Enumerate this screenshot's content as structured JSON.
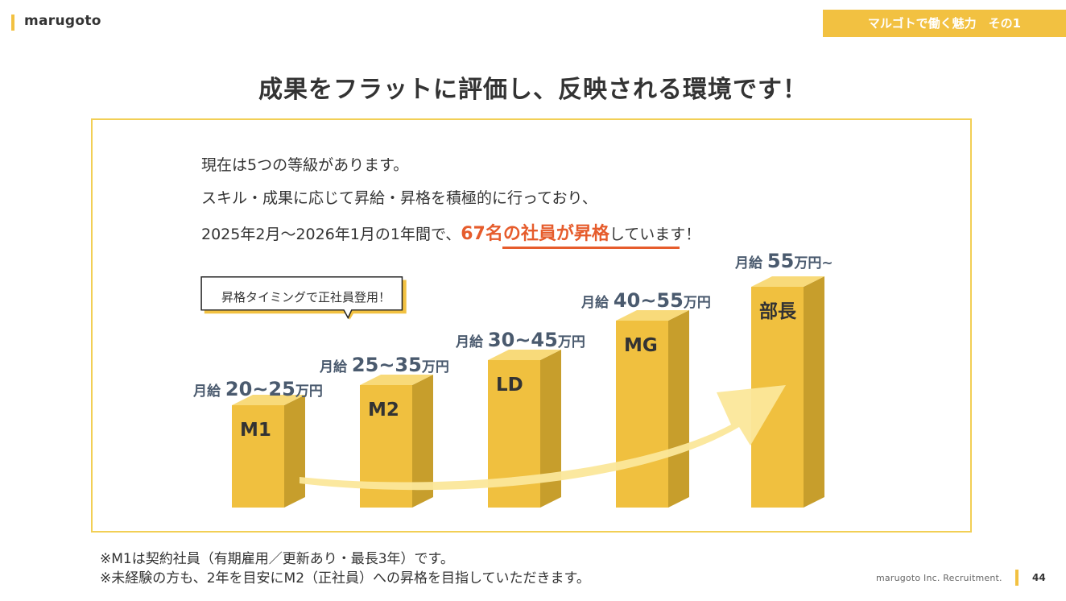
{
  "header": {
    "logo": "marugoto",
    "tag": "マルゴトで働く魅力　その1"
  },
  "title": "成果をフラットに評価し、反映される環境です！",
  "intro": {
    "line1": "現在は5つの等級があります。",
    "line2": "スキル・成果に応じて昇給・昇格を積極的に行っており、",
    "line3_prefix": "2025年2月〜2026年1月の1年間で、",
    "line3_highlight": "67名の社員が昇格",
    "line3_suffix": "しています！"
  },
  "bubble": "昇格タイミングで正社員登用！",
  "colors": {
    "accent": "#f2c141",
    "highlight": "#e65c2c",
    "salary_text": "#4a5a6e",
    "bar_front": "#f0c03f",
    "bar_side": "#c79e2c",
    "bar_top": "#f8da7a",
    "arrow": "#fbe79a"
  },
  "grades": [
    {
      "label": "M1",
      "salary_prefix": "月給 ",
      "salary_range": "20~25",
      "salary_unit": "万円"
    },
    {
      "label": "M2",
      "salary_prefix": "月給 ",
      "salary_range": "25~35",
      "salary_unit": "万円"
    },
    {
      "label": "LD",
      "salary_prefix": "月給 ",
      "salary_range": "30~45",
      "salary_unit": "万円"
    },
    {
      "label": "MG",
      "salary_prefix": "月給 ",
      "salary_range": "40~55",
      "salary_unit": "万円"
    },
    {
      "label": "部長",
      "salary_prefix": "月給 ",
      "salary_range": "55",
      "salary_unit": "万円~"
    }
  ],
  "notes": [
    "※M1は契約社員（有期雇用／更新あり・最長3年）です。",
    "※未経験の方も、2年を目安にM2（正社員）への昇格を目指していただきます。"
  ],
  "footer": {
    "company": "marugoto Inc. Recruitment.",
    "page": "44"
  }
}
